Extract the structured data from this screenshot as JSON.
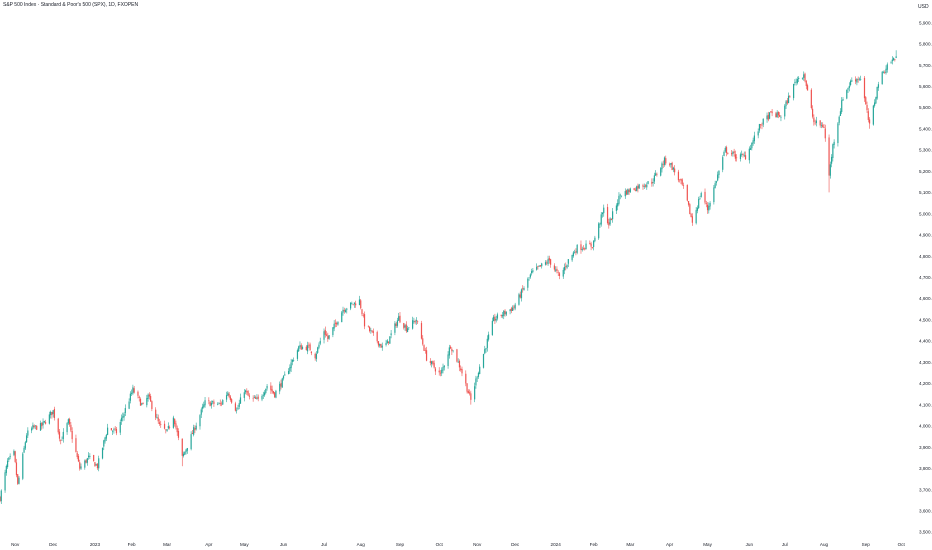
{
  "chart_title": "S&P 500 Index · Standard & Poor's 500 (SPX), 1D, FXOPEN",
  "currency": "USD",
  "colors": {
    "up": "#26a69a",
    "down": "#ef5350",
    "axis_text": "#131722",
    "background": "#ffffff"
  },
  "chart_data": {
    "type": "candlestick",
    "title": "S&P 500 Index · Standard & Poor's 500 (SPX), 1D, FXOPEN",
    "y_unit": "USD",
    "ylim": [
      3500,
      5950
    ],
    "grid": false,
    "y_ticks": [
      3500,
      3600,
      3700,
      3800,
      3900,
      4000,
      4100,
      4200,
      4300,
      4400,
      4500,
      4600,
      4700,
      4800,
      4900,
      5000,
      5100,
      5200,
      5300,
      5400,
      5500,
      5600,
      5700,
      5800,
      5900
    ],
    "y_tick_labels": [
      "3,500.0",
      "3,600.0",
      "3,700.0",
      "3,800.0",
      "3,900.0",
      "4,000.0",
      "4,100.0",
      "4,200.0",
      "4,300.0",
      "4,400.0",
      "4,500.0",
      "4,600.0",
      "4,700.0",
      "4,800.0",
      "4,900.0",
      "5,000.0",
      "5,100.0",
      "5,200.0",
      "5,300.0",
      "5,400.0",
      "5,500.0",
      "5,600.0",
      "5,700.0",
      "5,800.0",
      "5,900.0"
    ],
    "x_labels": [
      {
        "label": "Nov",
        "date": "2022-11-01"
      },
      {
        "label": "Dec",
        "date": "2022-12-01"
      },
      {
        "label": "2023",
        "date": "2023-01-03"
      },
      {
        "label": "Feb",
        "date": "2023-02-01"
      },
      {
        "label": "Mar",
        "date": "2023-03-01"
      },
      {
        "label": "Apr",
        "date": "2023-04-03"
      },
      {
        "label": "May",
        "date": "2023-05-01"
      },
      {
        "label": "Jun",
        "date": "2023-06-01"
      },
      {
        "label": "Jul",
        "date": "2023-07-03"
      },
      {
        "label": "Aug",
        "date": "2023-08-01"
      },
      {
        "label": "Sep",
        "date": "2023-09-01"
      },
      {
        "label": "Oct",
        "date": "2023-10-02"
      },
      {
        "label": "Nov",
        "date": "2023-11-01"
      },
      {
        "label": "Dec",
        "date": "2023-12-01"
      },
      {
        "label": "2024",
        "date": "2024-01-02"
      },
      {
        "label": "Feb",
        "date": "2024-02-01"
      },
      {
        "label": "Mar",
        "date": "2024-03-01"
      },
      {
        "label": "Apr",
        "date": "2024-04-01"
      },
      {
        "label": "May",
        "date": "2024-05-01"
      },
      {
        "label": "Jun",
        "date": "2024-06-03"
      },
      {
        "label": "Jul",
        "date": "2024-07-01"
      },
      {
        "label": "Aug",
        "date": "2024-08-01"
      },
      {
        "label": "Sep",
        "date": "2024-09-03"
      },
      {
        "label": "Oct",
        "date": "2024-10-01"
      }
    ],
    "xlim": [
      "2022-10-20",
      "2024-10-04"
    ],
    "price_path": [
      [
        "2022-10-20",
        3660
      ],
      [
        "2022-10-26",
        3830
      ],
      [
        "2022-10-31",
        3870
      ],
      [
        "2022-11-03",
        3720
      ],
      [
        "2022-11-10",
        3960
      ],
      [
        "2022-11-15",
        3990
      ],
      [
        "2022-11-22",
        4000
      ],
      [
        "2022-12-01",
        4070
      ],
      [
        "2022-12-07",
        3930
      ],
      [
        "2022-12-13",
        4020
      ],
      [
        "2022-12-22",
        3800
      ],
      [
        "2022-12-29",
        3850
      ],
      [
        "2023-01-05",
        3810
      ],
      [
        "2023-01-13",
        3990
      ],
      [
        "2023-01-20",
        3970
      ],
      [
        "2023-02-02",
        4170
      ],
      [
        "2023-02-10",
        4090
      ],
      [
        "2023-02-14",
        4140
      ],
      [
        "2023-02-23",
        4000
      ],
      [
        "2023-03-01",
        3970
      ],
      [
        "2023-03-06",
        4050
      ],
      [
        "2023-03-13",
        3850
      ],
      [
        "2023-03-20",
        3950
      ],
      [
        "2023-03-31",
        4110
      ],
      [
        "2023-04-12",
        4100
      ],
      [
        "2023-04-18",
        4160
      ],
      [
        "2023-04-25",
        4070
      ],
      [
        "2023-05-01",
        4170
      ],
      [
        "2023-05-05",
        4130
      ],
      [
        "2023-05-12",
        4120
      ],
      [
        "2023-05-19",
        4190
      ],
      [
        "2023-05-25",
        4150
      ],
      [
        "2023-06-01",
        4220
      ],
      [
        "2023-06-13",
        4370
      ],
      [
        "2023-06-21",
        4370
      ],
      [
        "2023-06-26",
        4330
      ],
      [
        "2023-07-03",
        4450
      ],
      [
        "2023-07-06",
        4410
      ],
      [
        "2023-07-18",
        4550
      ],
      [
        "2023-07-31",
        4590
      ],
      [
        "2023-08-04",
        4480
      ],
      [
        "2023-08-18",
        4370
      ],
      [
        "2023-08-22",
        4390
      ],
      [
        "2023-08-31",
        4510
      ],
      [
        "2023-09-06",
        4460
      ],
      [
        "2023-09-14",
        4500
      ],
      [
        "2023-09-22",
        4320
      ],
      [
        "2023-10-03",
        4240
      ],
      [
        "2023-10-11",
        4380
      ],
      [
        "2023-10-19",
        4270
      ],
      [
        "2023-10-27",
        4120
      ],
      [
        "2023-11-01",
        4240
      ],
      [
        "2023-11-14",
        4500
      ],
      [
        "2023-11-30",
        4560
      ],
      [
        "2023-12-14",
        4720
      ],
      [
        "2023-12-28",
        4780
      ],
      [
        "2024-01-05",
        4700
      ],
      [
        "2024-01-12",
        4780
      ],
      [
        "2024-01-19",
        4840
      ],
      [
        "2024-01-31",
        4850
      ],
      [
        "2024-02-09",
        5020
      ],
      [
        "2024-02-13",
        4950
      ],
      [
        "2024-02-22",
        5090
      ],
      [
        "2024-03-08",
        5130
      ],
      [
        "2024-03-18",
        5150
      ],
      [
        "2024-03-28",
        5250
      ],
      [
        "2024-04-01",
        5240
      ],
      [
        "2024-04-12",
        5120
      ],
      [
        "2024-04-19",
        4960
      ],
      [
        "2024-04-26",
        5100
      ],
      [
        "2024-05-01",
        5020
      ],
      [
        "2024-05-15",
        5300
      ],
      [
        "2024-05-23",
        5270
      ],
      [
        "2024-05-31",
        5270
      ],
      [
        "2024-06-12",
        5420
      ],
      [
        "2024-06-20",
        5470
      ],
      [
        "2024-06-28",
        5460
      ],
      [
        "2024-07-10",
        5630
      ],
      [
        "2024-07-16",
        5660
      ],
      [
        "2024-07-24",
        5430
      ],
      [
        "2024-08-01",
        5410
      ],
      [
        "2024-08-05",
        5180
      ],
      [
        "2024-08-08",
        5320
      ],
      [
        "2024-08-16",
        5550
      ],
      [
        "2024-08-23",
        5630
      ],
      [
        "2024-08-30",
        5640
      ],
      [
        "2024-09-06",
        5410
      ],
      [
        "2024-09-13",
        5620
      ],
      [
        "2024-09-20",
        5700
      ],
      [
        "2024-09-27",
        5740
      ]
    ],
    "notable_lows": [
      [
        "2022-10-20",
        3640
      ],
      [
        "2023-03-13",
        3810
      ],
      [
        "2023-10-27",
        4100
      ],
      [
        "2024-04-19",
        4950
      ],
      [
        "2024-08-05",
        5100
      ],
      [
        "2024-09-06",
        5400
      ]
    ],
    "notable_highs": [
      [
        "2023-02-02",
        4190
      ],
      [
        "2023-07-31",
        4610
      ],
      [
        "2024-03-28",
        5270
      ],
      [
        "2024-07-16",
        5670
      ],
      [
        "2024-09-27",
        5770
      ]
    ]
  }
}
